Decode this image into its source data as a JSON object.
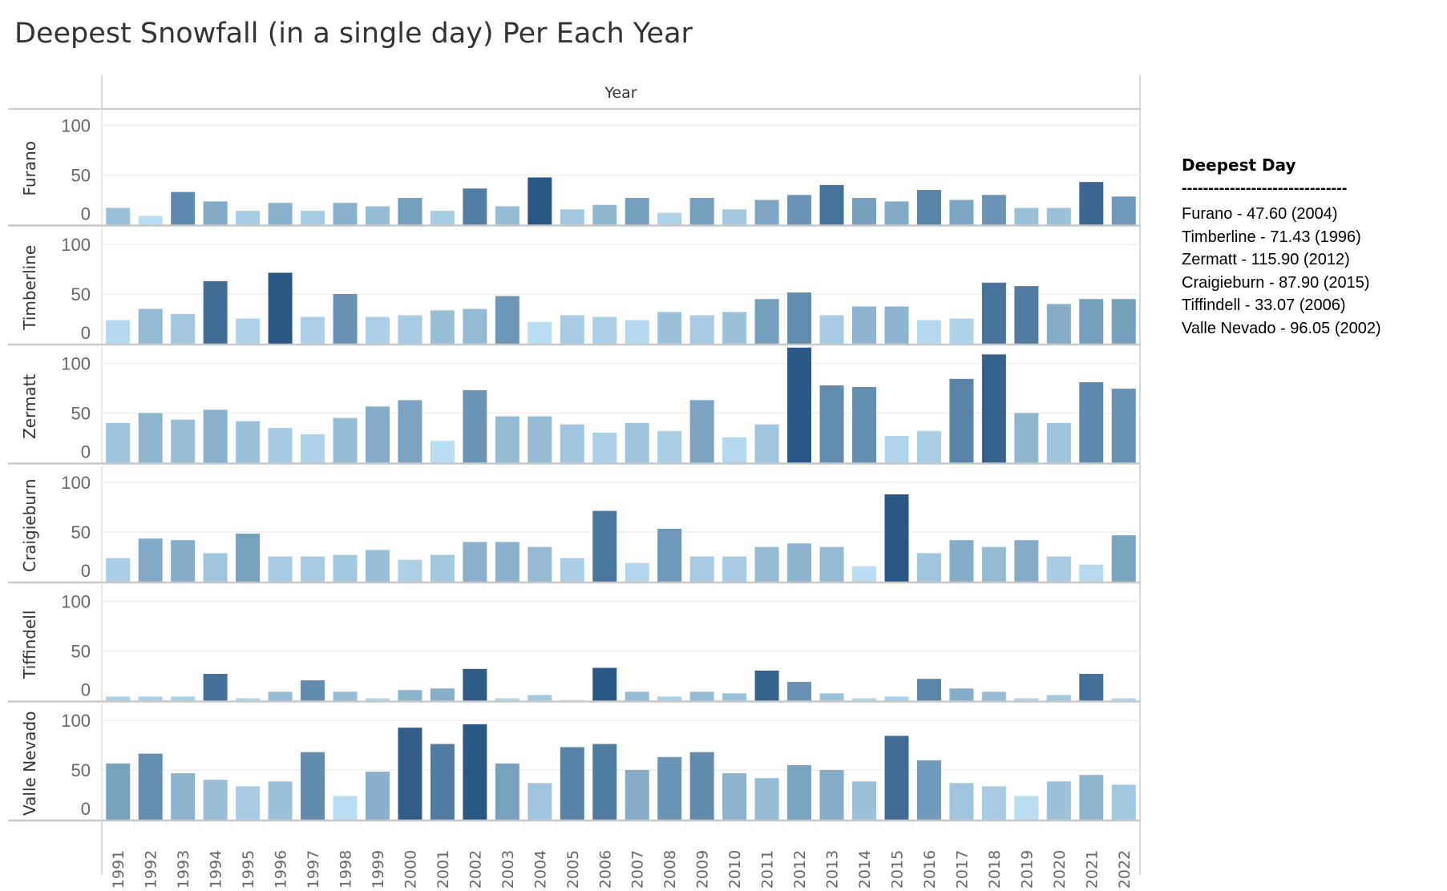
{
  "title": "Deepest Snowfall (in a single day) Per Each Year",
  "legend": {
    "heading": "Deepest Day",
    "divider": "-------------------------------",
    "items": [
      "Furano - 47.60 (2004)",
      "Timberline - 71.43 (1996)",
      "Zermatt - 115.90 (2012)",
      "Craigieburn - 87.90 (2015)",
      "Tiffindell - 33.07 (2006)",
      "Valle Nevado - 96.05 (2002)"
    ]
  },
  "chart_data": {
    "type": "bar",
    "title": "Deepest Snowfall (in a single day) Per Each Year",
    "xlabel": "Year",
    "ylabel": "",
    "ylim": [
      0,
      119
    ],
    "yticks": [
      "0",
      "50",
      "100"
    ],
    "grid": true,
    "colors": {
      "light": "#b9ddf1",
      "dark": "#2a5783"
    },
    "categories": [
      "1991",
      "1992",
      "1993",
      "1994",
      "1995",
      "1996",
      "1997",
      "1998",
      "1999",
      "2000",
      "2001",
      "2002",
      "2003",
      "2004",
      "2005",
      "2006",
      "2007",
      "2008",
      "2009",
      "2010",
      "2011",
      "2012",
      "2013",
      "2014",
      "2015",
      "2016",
      "2017",
      "2018",
      "2019",
      "2020",
      "2021",
      "2022"
    ],
    "series": [
      {
        "name": "Furano",
        "values": [
          17,
          9,
          33,
          23.5,
          14,
          22,
          14,
          22,
          18.6,
          27,
          14,
          36.5,
          18.6,
          47.6,
          15.4,
          20,
          27,
          12,
          27,
          15.4,
          25,
          30,
          40,
          27,
          23.5,
          35,
          25,
          30,
          17,
          17,
          43,
          28.4
        ]
      },
      {
        "name": "Timberline",
        "values": [
          23.8,
          35,
          30,
          63,
          25.4,
          71.43,
          27,
          50,
          27,
          28.7,
          33.6,
          35,
          48,
          22,
          28.7,
          27,
          23.8,
          32,
          28.7,
          32,
          45,
          51.6,
          28.7,
          37.5,
          37.5,
          23.8,
          25.4,
          61.5,
          58,
          40,
          45,
          45
        ]
      },
      {
        "name": "Zermatt",
        "values": [
          40,
          50,
          43.4,
          53.3,
          41.8,
          35,
          28.7,
          45,
          56.6,
          63,
          22,
          73,
          46.7,
          46.7,
          38.5,
          30.3,
          40,
          32,
          63,
          25.4,
          38.5,
          115.9,
          77.9,
          76.2,
          27,
          32,
          84.4,
          109,
          50,
          40,
          81,
          74.6
        ]
      },
      {
        "name": "Craigieburn",
        "values": [
          23.8,
          43.4,
          41.8,
          28.7,
          48.4,
          25.4,
          25.4,
          27,
          32,
          22,
          27,
          40,
          40,
          35,
          23.8,
          71.3,
          18.9,
          53.3,
          25.4,
          25.4,
          35,
          38.5,
          35,
          15.6,
          87.9,
          28.7,
          41.8,
          35,
          41.8,
          25.4,
          17.2,
          46.7
        ]
      },
      {
        "name": "Tiffindell",
        "values": [
          4.1,
          4.1,
          4.1,
          27,
          2.5,
          9,
          20.5,
          9,
          2.5,
          10.7,
          12.3,
          32,
          2.5,
          5.7,
          0.8,
          33.07,
          9,
          4.1,
          9,
          7.4,
          30.3,
          18.9,
          7.4,
          2.5,
          4.1,
          22,
          12.3,
          9,
          2.5,
          5.7,
          27,
          2.5
        ]
      },
      {
        "name": "Valle Nevado",
        "values": [
          56.6,
          66.4,
          46.7,
          40.2,
          33.6,
          38.5,
          68,
          23.8,
          48.4,
          92.6,
          76.2,
          96.05,
          56.6,
          36.9,
          73,
          76.2,
          50,
          63.1,
          68,
          46.7,
          41.8,
          54.9,
          50,
          38.5,
          84.4,
          59.8,
          36.9,
          33.6,
          23.8,
          38.5,
          45,
          35.2
        ]
      }
    ]
  }
}
